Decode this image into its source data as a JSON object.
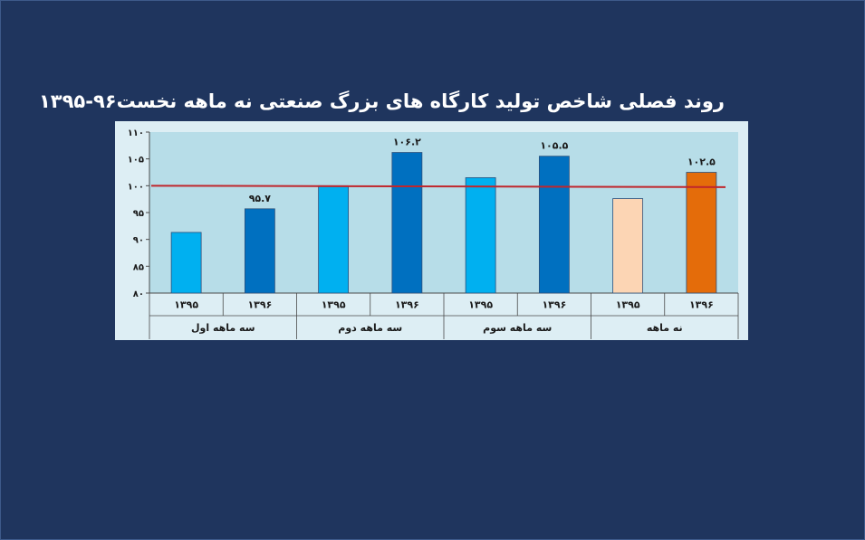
{
  "chart_data": {
    "type": "bar",
    "title": "روند فصلی شاخص تولید کارگاه های بزرگ صنعتی نه ماهه نخست۹۶-۱۳۹۵",
    "ylim": [
      80,
      110
    ],
    "y_ticks": [
      80,
      85,
      90,
      95,
      100,
      105,
      110
    ],
    "y_tick_labels": [
      "۸۰",
      "۸۵",
      "۹۰",
      "۹۵",
      "۱۰۰",
      "۱۰۵",
      "۱۱۰"
    ],
    "reference_line": {
      "value": 100,
      "color": "#c0262c"
    },
    "grid": false,
    "groups": [
      {
        "label": "سه ماهه اول",
        "categories": [
          "۱۳۹۵",
          "۱۳۹۶"
        ]
      },
      {
        "label": "سه ماهه دوم",
        "categories": [
          "۱۳۹۵",
          "۱۳۹۶"
        ]
      },
      {
        "label": "سه ماهه سوم",
        "categories": [
          "۱۳۹۵",
          "۱۳۹۶"
        ]
      },
      {
        "label": "نه ماهه",
        "categories": [
          "۱۳۹۵",
          "۱۳۹۶"
        ]
      }
    ],
    "bars": [
      {
        "group": 0,
        "category": "۱۳۹۵",
        "value": 91.3,
        "label": "",
        "color": "#00b0f0"
      },
      {
        "group": 0,
        "category": "۱۳۹۶",
        "value": 95.7,
        "label": "۹۵.۷",
        "color": "#0070c0"
      },
      {
        "group": 1,
        "category": "۱۳۹۵",
        "value": 100.0,
        "label": "",
        "color": "#00b0f0"
      },
      {
        "group": 1,
        "category": "۱۳۹۶",
        "value": 106.2,
        "label": "۱۰۶.۲",
        "color": "#0070c0"
      },
      {
        "group": 2,
        "category": "۱۳۹۵",
        "value": 101.5,
        "label": "",
        "color": "#00b0f0"
      },
      {
        "group": 2,
        "category": "۱۳۹۶",
        "value": 105.5,
        "label": "۱۰۵.۵",
        "color": "#0070c0"
      },
      {
        "group": 3,
        "category": "۱۳۹۵",
        "value": 97.6,
        "label": "",
        "color": "#fcd5b4"
      },
      {
        "group": 3,
        "category": "۱۳۹۶",
        "value": 102.5,
        "label": "۱۰۲.۵",
        "color": "#e46c0a"
      }
    ],
    "colors": {
      "plot_background": "#b7dde8",
      "chart_background": "#ddeef4",
      "axis": "#4a4a4a"
    }
  }
}
